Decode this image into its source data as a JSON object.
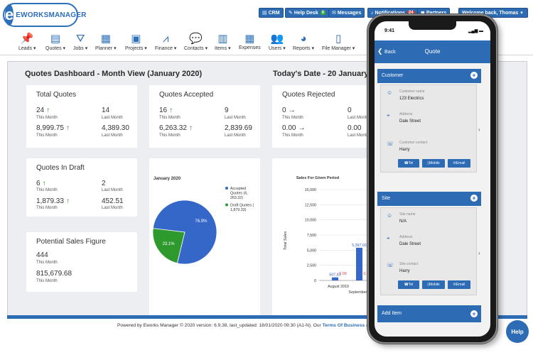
{
  "logo": {
    "mark": "e",
    "prefix": "E",
    "name": "WORKSMANAGER"
  },
  "topbar": {
    "crm": "CRM",
    "helpdesk": "Help Desk",
    "helpdesk_badge": "0",
    "messages": "Messages",
    "notifications": "Notifications",
    "notifications_badge": "24",
    "partners": "Partners",
    "welcome": "Welcome back, Thomas"
  },
  "nav": {
    "items": [
      {
        "label": "Leads",
        "icon": "pin-icon"
      },
      {
        "label": "Quotes",
        "icon": "document-icon"
      },
      {
        "label": "Jobs",
        "icon": "road-icon"
      },
      {
        "label": "Planner",
        "icon": "calendar-icon"
      },
      {
        "label": "Projects",
        "icon": "briefcase-icon"
      },
      {
        "label": "Finance",
        "icon": "chart-line-icon"
      },
      {
        "label": "Contacts",
        "icon": "chat-icon"
      },
      {
        "label": "Items",
        "icon": "barcode-icon"
      },
      {
        "label": "Expenses",
        "icon": "calculator-icon"
      },
      {
        "label": "Users",
        "icon": "users-icon"
      },
      {
        "label": "Reports",
        "icon": "pie-icon"
      },
      {
        "label": "File Manager",
        "icon": "pdf-icon"
      }
    ]
  },
  "dashboard": {
    "title": "Quotes Dashboard - Month View (January 2020)",
    "date": "Today's Date - 20 January 2",
    "this_month": "This Month",
    "last_month": "Last Month",
    "total_quotes": {
      "title": "Total Quotes",
      "count": "24",
      "count_last": "14",
      "value": "8,999.75",
      "value_last": "4,389.30"
    },
    "accepted": {
      "title": "Quotes Accepted",
      "count": "16",
      "count_last": "9",
      "value": "6,263.32",
      "value_last": "2,839.69"
    },
    "rejected": {
      "title": "Quotes Rejected",
      "count": "0",
      "count_last": "0",
      "value": "0.00",
      "value_last": "0.00"
    },
    "draft": {
      "title": "Quotes In Draft",
      "count": "6",
      "count_last": "2",
      "value": "1,879.33",
      "value_last": "452.51"
    },
    "potential": {
      "title": "Potential Sales Figure",
      "count": "444",
      "value": "815,679.68"
    }
  },
  "chart_data": [
    {
      "type": "pie",
      "title": "January 2020",
      "slices": [
        {
          "label": "Accepted Quotes (6, 263.32)",
          "value": 76.9,
          "display": "76.9%",
          "color": "#3567c9"
        },
        {
          "label": "Draft Quotes ( 1,879.33)",
          "value": 23.1,
          "display": "23.1%",
          "color": "#2e9a2e"
        }
      ],
      "legend": "right"
    },
    {
      "type": "bar",
      "title": "Sales For Given Period",
      "ylabel": "Total Sales",
      "ylim": [
        0,
        15000
      ],
      "yticks": [
        "0",
        "2,500",
        "5,000",
        "7,500",
        "10,000",
        "12,500",
        "15,000"
      ],
      "categories": [
        "August 2019",
        "September 2019"
      ],
      "series": [
        {
          "values": [
            507.81,
            5397.02
          ],
          "labels": [
            "507.81",
            "5,397.02"
          ],
          "color": "#3567c9"
        },
        {
          "values": [
            0,
            0
          ],
          "labels": [
            "0.00",
            "0.00"
          ],
          "color": "#d9423a"
        }
      ]
    }
  ],
  "footer": {
    "text": "Powered by Eworks Manager © 2020 version: 6.9.38, last_updated: 18/01/2020 09:30 (A1-N). Our",
    "link": "Terms Of Business",
    "tail": "a"
  },
  "phone": {
    "time": "9:41",
    "back": "Back",
    "title": "Quote",
    "customer": {
      "header": "Customer",
      "name_label": "Customer name",
      "name_value": "123 Electrics",
      "address_label": "Address",
      "address_value": "Dale Street",
      "contact_label": "Customer contact",
      "contact_value": "Harry",
      "tel": "Tel",
      "mobile": "Mobile",
      "email": "Email"
    },
    "site": {
      "header": "Site",
      "name_label": "Site name",
      "name_value": "N/A",
      "address_label": "Address",
      "address_value": "Dale Street",
      "contact_label": "Site contact",
      "contact_value": "Harry",
      "tel": "Tel",
      "mobile": "Mobile",
      "email": "Email"
    },
    "add_item": "Add Item"
  },
  "help": "Help"
}
